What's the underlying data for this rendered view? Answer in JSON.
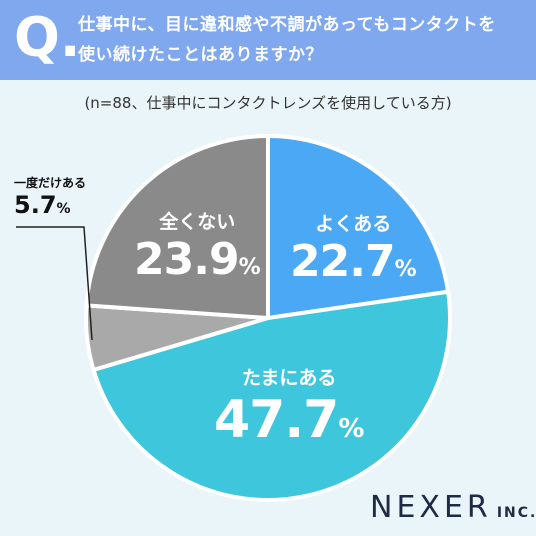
{
  "header": {
    "q_mark": "Q.",
    "question_line1": "仕事中に、目に違和感や不調があってもコンタクトを",
    "question_line2": "使い続けたことはありますか？",
    "bg_color": "#7fa8ee"
  },
  "sample_note": "(n=88、仕事中にコンタクトレンズを使用している方)",
  "chart_data": {
    "type": "pie",
    "start_angle_deg": 0,
    "direction": "clockwise",
    "slices": [
      {
        "label": "よくある",
        "value": 22.7,
        "value_text": "22.7",
        "color": "#4aa8f5"
      },
      {
        "label": "たまにある",
        "value": 47.7,
        "value_text": "47.7",
        "color": "#3ec6dd"
      },
      {
        "label": "一度だけある",
        "value": 5.7,
        "value_text": "5.7",
        "color": "#a9a9a9"
      },
      {
        "label": "全くない",
        "value": 23.9,
        "value_text": "23.9",
        "color": "#8a8a8a"
      }
    ],
    "percent_sign": "%"
  },
  "logo": {
    "name": "NEXER",
    "suffix": "INC."
  }
}
